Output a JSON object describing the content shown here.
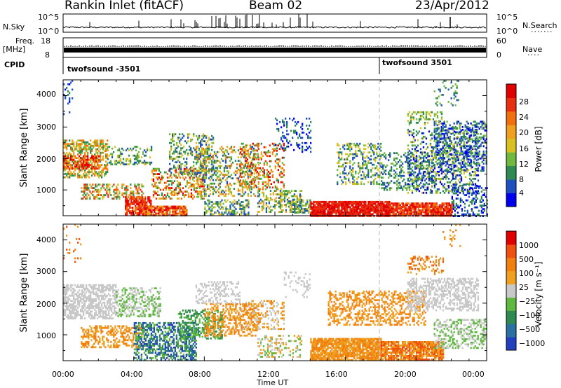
{
  "header": {
    "station": "Rankin Inlet (fitACF)",
    "beam": "Beam 02",
    "date": "23/Apr/2012"
  },
  "aux_panels": {
    "nsky_label": "N.Sky",
    "nsky_ticks": [
      "10^5",
      "10^0"
    ],
    "nsearch_label": "N.Search",
    "nsearch_ticks": [
      "10^5",
      "10^0"
    ],
    "freq_label_1": "Freq.",
    "freq_label_2": "[MHz]",
    "freq_ticks": [
      "18",
      "8"
    ],
    "nave_label": "Nave",
    "nave_ticks": [
      "60",
      "0"
    ],
    "cpid_label": "CPID",
    "cpid_entries": [
      "twofsound -3501",
      "twofsound 3501"
    ]
  },
  "chart_data": [
    {
      "type": "heatmap",
      "name": "power-panel",
      "ylabel": "Slant Range [km]",
      "yticks": [
        "4000",
        "3000",
        "2000",
        "1000"
      ],
      "ylim": [
        180,
        4500
      ],
      "colorbar": {
        "label": "Power [dB]",
        "ticks": [
          "28",
          "24",
          "20",
          "16",
          "12",
          "8",
          "4"
        ],
        "colors": [
          "#0000ee",
          "#2050c0",
          "#2e8a50",
          "#70b840",
          "#d8c020",
          "#f0a020",
          "#f07010",
          "#e83010",
          "#e00000"
        ]
      }
    },
    {
      "type": "heatmap",
      "name": "velocity-panel",
      "ylabel": "Slant Range [km]",
      "yticks": [
        "4000",
        "3000",
        "2000",
        "1000"
      ],
      "ylim": [
        180,
        4500
      ],
      "xlabel": "Time UT",
      "xticks": [
        "00:00",
        "04:00",
        "08:00",
        "12:00",
        "16:00",
        "20:00",
        "00:00"
      ],
      "colorbar": {
        "label": "Velocity [m s⁻¹]",
        "ticks": [
          "1000",
          "500",
          "100",
          "25",
          "−25",
          "−100",
          "−500",
          "−1000"
        ],
        "colors": [
          "#2040c0",
          "#2a70a0",
          "#2e8a50",
          "#60b840",
          "#c8c8c8",
          "#f0a020",
          "#f08010",
          "#f05010",
          "#e00000"
        ]
      }
    }
  ]
}
